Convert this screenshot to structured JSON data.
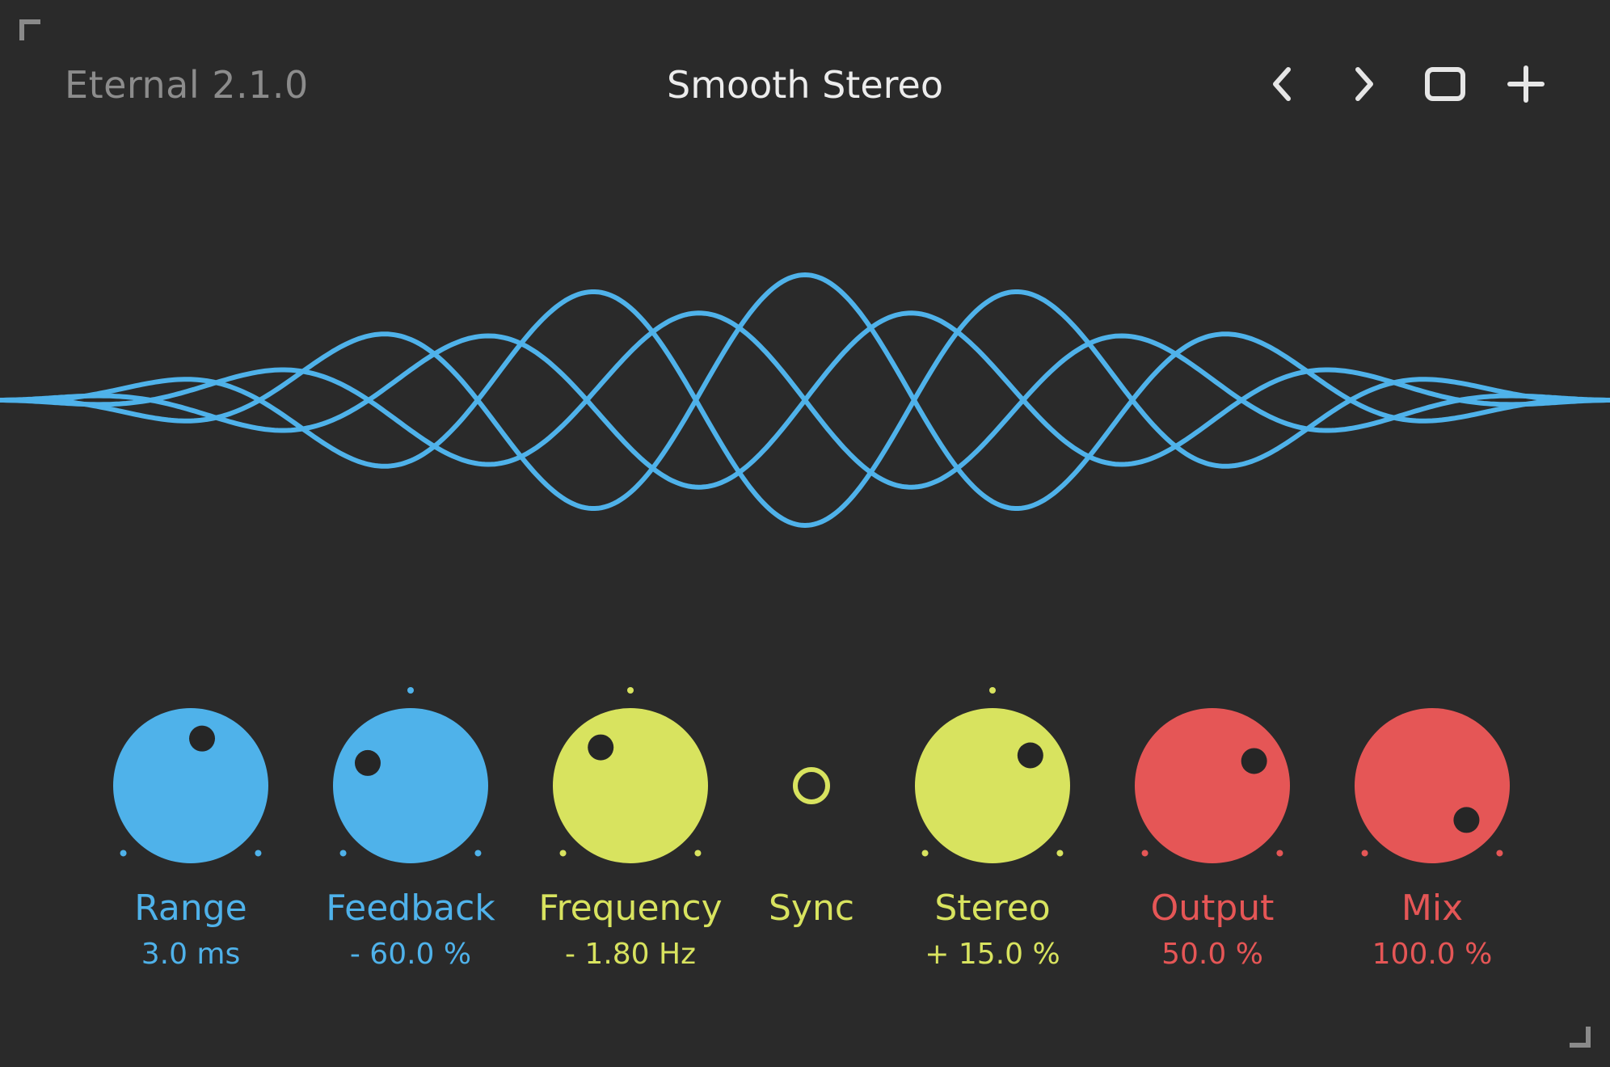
{
  "header": {
    "app_title": "Eternal 2.1.0",
    "preset_name": "Smooth Stereo",
    "buttons": [
      {
        "name": "prev-preset-button",
        "icon": "chevron-left-icon"
      },
      {
        "name": "next-preset-button",
        "icon": "chevron-right-icon"
      },
      {
        "name": "window-button",
        "icon": "square-icon"
      },
      {
        "name": "add-preset-button",
        "icon": "plus-icon"
      }
    ]
  },
  "colors": {
    "background": "#2a2a2a",
    "blue": "#4fb2ea",
    "yellow": "#d8e35f",
    "red": "#e55656",
    "title_gray": "#8c8c8c",
    "preset_white": "#ececec"
  },
  "controls": [
    {
      "id": "range",
      "label": "Range",
      "value": "3.0 ms",
      "color": "blue",
      "type": "knob",
      "level": 0.55,
      "center_tick": false
    },
    {
      "id": "feedback",
      "label": "Feedback",
      "value": "- 60.0 %",
      "color": "blue",
      "type": "knob",
      "level": 0.27,
      "center_tick": true
    },
    {
      "id": "frequency",
      "label": "Frequency",
      "value": "- 1.80 Hz",
      "color": "yellow",
      "type": "knob",
      "level": 0.36,
      "center_tick": true
    },
    {
      "id": "sync",
      "label": "Sync",
      "value": "",
      "color": "yellow",
      "type": "toggle",
      "on": false
    },
    {
      "id": "stereo",
      "label": "Stereo",
      "value": "+ 15.0 %",
      "color": "yellow",
      "type": "knob",
      "level": 0.69,
      "center_tick": true
    },
    {
      "id": "output",
      "label": "Output",
      "value": "50.0 %",
      "color": "red",
      "type": "knob",
      "level": 0.72,
      "center_tick": false
    },
    {
      "id": "mix",
      "label": "Mix",
      "value": "100.0 %",
      "color": "red",
      "type": "knob",
      "level": 1.0,
      "center_tick": false
    }
  ]
}
